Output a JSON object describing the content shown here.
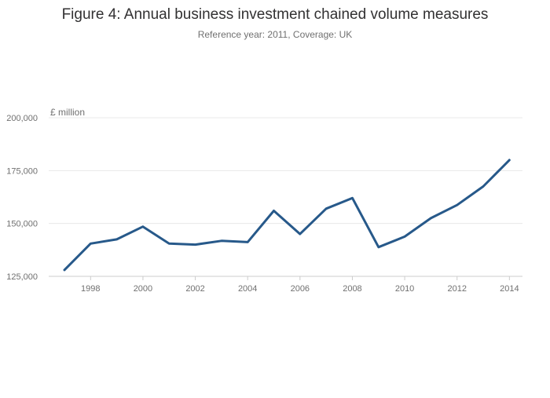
{
  "chart_data": {
    "type": "line",
    "title": "Figure 4: Annual business investment chained volume measures",
    "subtitle": "Reference year: 2011, Coverage: UK",
    "ylabel": "£ million",
    "xlabel": "",
    "x": [
      1997,
      1998,
      1999,
      2000,
      2001,
      2002,
      2003,
      2004,
      2005,
      2006,
      2007,
      2008,
      2009,
      2010,
      2011,
      2012,
      2013,
      2014
    ],
    "series": [
      {
        "name": "Business investment",
        "color": "#27598a",
        "values": [
          128000,
          140500,
          142500,
          148500,
          140500,
          140000,
          141800,
          141200,
          156000,
          145000,
          157000,
          162000,
          138800,
          143800,
          152500,
          158700,
          167500,
          180000
        ]
      }
    ],
    "ylim": [
      125000,
      200000
    ],
    "yticks": [
      125000,
      150000,
      175000,
      200000
    ],
    "ytick_labels": [
      "125,000",
      "150,000",
      "175,000",
      "200,000"
    ],
    "xlim": [
      1996.4,
      2014.5
    ],
    "xticks": [
      1998,
      2000,
      2002,
      2004,
      2006,
      2008,
      2010,
      2012,
      2014
    ],
    "xtick_labels": [
      "1998",
      "2000",
      "2002",
      "2004",
      "2006",
      "2008",
      "2010",
      "2012",
      "2014"
    ],
    "grid": true,
    "legend": "none"
  }
}
